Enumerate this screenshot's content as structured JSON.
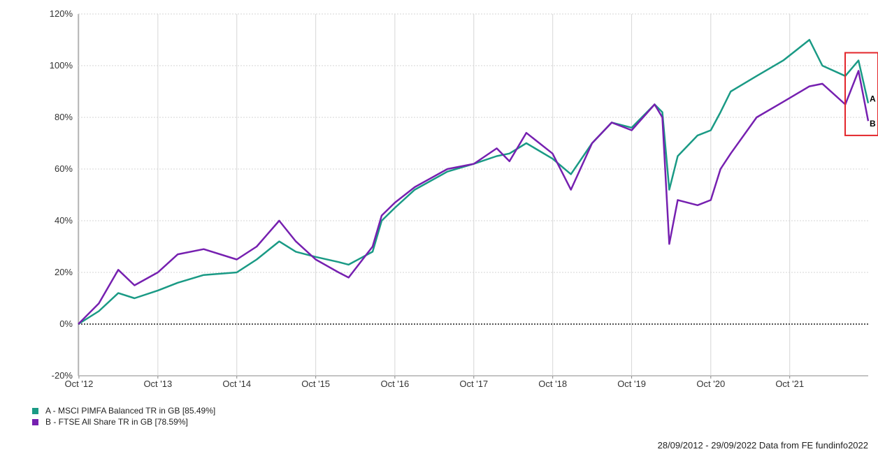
{
  "chart_data": {
    "type": "line",
    "ylim": [
      -20,
      120
    ],
    "y_ticks": [
      "120%",
      "100%",
      "80%",
      "60%",
      "40%",
      "20%",
      "0%",
      "-20%"
    ],
    "y_tick_values": [
      120,
      100,
      80,
      60,
      40,
      20,
      0,
      -20
    ],
    "x_tick_labels": [
      "Oct '12",
      "Oct '13",
      "Oct '14",
      "Oct '15",
      "Oct '16",
      "Oct '17",
      "Oct '18",
      "Oct '19",
      "Oct '20",
      "Oct '21"
    ],
    "x_tick_dates": [
      "2012-10-01",
      "2013-10-01",
      "2014-10-01",
      "2015-10-01",
      "2016-10-01",
      "2017-10-01",
      "2018-10-01",
      "2019-10-01",
      "2020-10-01",
      "2021-10-01"
    ],
    "xlim": [
      "2012-09-28",
      "2022-09-29"
    ],
    "grid": true,
    "series": [
      {
        "name": "A - MSCI PIMFA Balanced TR in GB [85.49%]",
        "marker": "A",
        "color": "#1a9a85",
        "x": [
          "2012-09-28",
          "2013-01-01",
          "2013-04-01",
          "2013-06-15",
          "2013-10-01",
          "2014-01-01",
          "2014-05-01",
          "2014-10-01",
          "2015-01-01",
          "2015-04-15",
          "2015-07-01",
          "2015-10-01",
          "2016-01-15",
          "2016-03-01",
          "2016-06-20",
          "2016-08-01",
          "2016-10-01",
          "2017-01-01",
          "2017-06-01",
          "2017-10-01",
          "2018-01-15",
          "2018-03-15",
          "2018-06-01",
          "2018-09-30",
          "2018-12-24",
          "2019-04-01",
          "2019-07-01",
          "2019-10-01",
          "2020-01-15",
          "2020-02-20",
          "2020-03-23",
          "2020-05-01",
          "2020-08-01",
          "2020-10-01",
          "2020-11-15",
          "2021-01-01",
          "2021-05-01",
          "2021-09-01",
          "2021-12-31",
          "2022-03-01",
          "2022-06-15",
          "2022-08-15",
          "2022-09-29"
        ],
        "values": [
          0,
          5,
          12,
          10,
          13,
          16,
          19,
          20,
          25,
          32,
          28,
          26,
          24,
          23,
          28,
          40,
          45,
          52,
          59,
          62,
          65,
          66,
          70,
          64,
          58,
          70,
          78,
          76,
          85,
          82,
          52,
          65,
          73,
          75,
          82,
          90,
          96,
          102,
          110,
          100,
          96,
          102,
          85.49
        ]
      },
      {
        "name": "B - FTSE All Share TR in GB [78.59%]",
        "marker": "B",
        "color": "#7620b0",
        "x": [
          "2012-09-28",
          "2013-01-01",
          "2013-04-01",
          "2013-06-15",
          "2013-10-01",
          "2014-01-01",
          "2014-05-01",
          "2014-10-01",
          "2015-01-01",
          "2015-04-15",
          "2015-07-01",
          "2015-10-01",
          "2016-01-15",
          "2016-03-01",
          "2016-06-20",
          "2016-08-01",
          "2016-10-01",
          "2017-01-01",
          "2017-06-01",
          "2017-10-01",
          "2018-01-15",
          "2018-03-15",
          "2018-06-01",
          "2018-09-30",
          "2018-12-24",
          "2019-04-01",
          "2019-07-01",
          "2019-10-01",
          "2020-01-15",
          "2020-02-20",
          "2020-03-23",
          "2020-05-01",
          "2020-08-01",
          "2020-10-01",
          "2020-11-15",
          "2021-01-01",
          "2021-05-01",
          "2021-09-01",
          "2021-12-31",
          "2022-03-01",
          "2022-06-15",
          "2022-08-15",
          "2022-09-29"
        ],
        "values": [
          0,
          8,
          21,
          15,
          20,
          27,
          29,
          25,
          30,
          40,
          32,
          25,
          20,
          18,
          30,
          42,
          47,
          53,
          60,
          62,
          68,
          63,
          74,
          66,
          52,
          70,
          78,
          75,
          85,
          80,
          31,
          48,
          46,
          48,
          60,
          66,
          80,
          86,
          92,
          93,
          85,
          98,
          78.59
        ]
      }
    ]
  },
  "footer": {
    "text": "28/09/2012 - 29/09/2022 Data from FE fundinfo2022"
  }
}
